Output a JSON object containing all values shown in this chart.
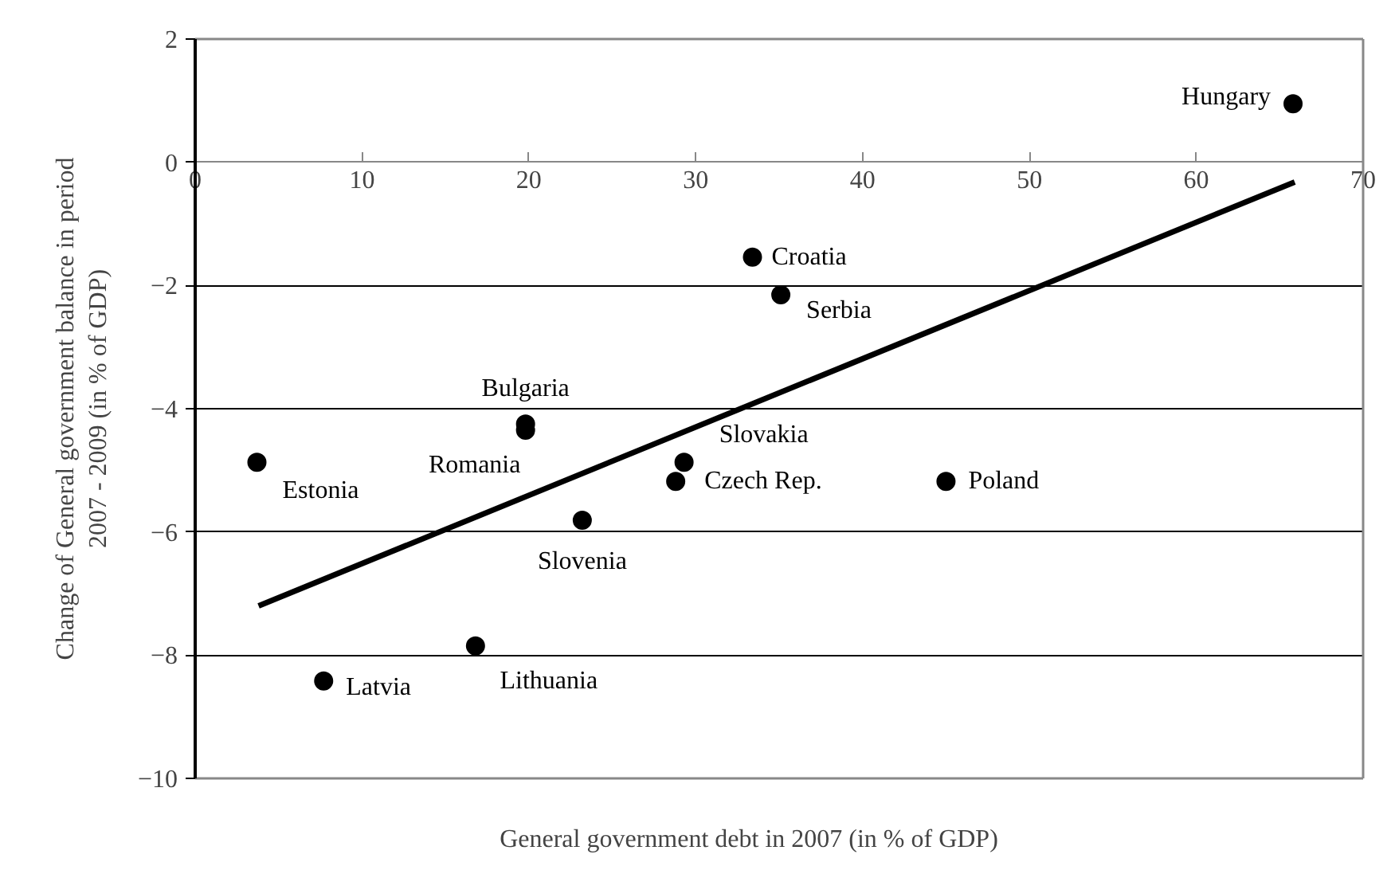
{
  "chart_data": {
    "type": "scatter",
    "xlabel": "General government debt in 2007 (in % of GDP)",
    "ylabel": "Change of General government balance in period\n2007 - 2009 (in % of GDP)",
    "xlim": [
      0,
      70
    ],
    "xticks": [
      0,
      10,
      20,
      30,
      40,
      50,
      60,
      70
    ],
    "ylim": [
      -10,
      2
    ],
    "yticks": [
      -10,
      -8,
      -6,
      -4,
      -2,
      0,
      2
    ],
    "grid": "y",
    "marker": "circle",
    "series": [
      {
        "name": "Hungary",
        "color": "#000000",
        "x": [
          65.8
        ],
        "values": [
          0.95
        ]
      },
      {
        "name": "Croatia",
        "color": "#000000",
        "x": [
          33.4
        ],
        "values": [
          -1.54
        ]
      },
      {
        "name": "Serbia",
        "color": "#000000",
        "x": [
          35.1
        ],
        "values": [
          -2.15
        ]
      },
      {
        "name": "Bulgaria",
        "color": "#000000",
        "x": [
          19.8
        ],
        "values": [
          -4.25
        ]
      },
      {
        "name": "Romania",
        "color": "#000000",
        "x": [
          19.8
        ],
        "values": [
          -4.35
        ]
      },
      {
        "name": "Estonia",
        "color": "#000000",
        "x": [
          3.7
        ],
        "values": [
          -4.87
        ]
      },
      {
        "name": "Slovakia",
        "color": "#000000",
        "x": [
          29.3
        ],
        "values": [
          -4.87
        ]
      },
      {
        "name": "Czech Rep.",
        "color": "#000000",
        "x": [
          28.8
        ],
        "values": [
          -5.18
        ]
      },
      {
        "name": "Slovenia",
        "color": "#000000",
        "x": [
          23.2
        ],
        "values": [
          -5.81
        ]
      },
      {
        "name": "Poland",
        "color": "#000000",
        "x": [
          45.0
        ],
        "values": [
          -5.18
        ]
      },
      {
        "name": "Latvia",
        "color": "#000000",
        "x": [
          7.7
        ],
        "values": [
          -8.42
        ]
      },
      {
        "name": "Lithuania",
        "color": "#000000",
        "x": [
          16.8
        ],
        "values": [
          -7.85
        ]
      },
      {
        "type": "line",
        "marker": "none",
        "color": "#000000",
        "x": [
          3.8,
          65.9
        ],
        "values": [
          -7.2,
          -0.32
        ]
      }
    ]
  }
}
